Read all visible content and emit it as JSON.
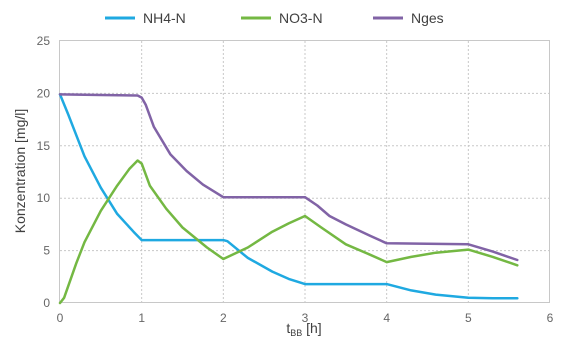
{
  "chart_data": {
    "type": "line",
    "xlabel": "t",
    "xlabel_sub": "BB",
    "xlabel_unit": " [h]",
    "ylabel": "Konzentration [mg/l]",
    "xlim": [
      0,
      6
    ],
    "ylim": [
      0,
      25
    ],
    "x_ticks": [
      0,
      1,
      2,
      3,
      4,
      5,
      6
    ],
    "y_ticks": [
      0,
      5,
      10,
      15,
      20,
      25
    ],
    "grid": true,
    "legend_position": "top",
    "series": [
      {
        "name": "NH4-N",
        "color": "#1fa9e1",
        "x": [
          0,
          0.1,
          0.3,
          0.5,
          0.7,
          0.9,
          1.0,
          1.5,
          2.0,
          2.05,
          2.3,
          2.6,
          2.8,
          3.0,
          3.5,
          4.0,
          4.3,
          4.6,
          5.0,
          5.3,
          5.6
        ],
        "y": [
          19.9,
          18.0,
          14.0,
          11.0,
          8.5,
          6.8,
          6.0,
          6.0,
          6.0,
          5.9,
          4.3,
          3.0,
          2.3,
          1.8,
          1.8,
          1.8,
          1.2,
          0.8,
          0.5,
          0.45,
          0.45
        ]
      },
      {
        "name": "NO3-N",
        "color": "#74b843",
        "x": [
          0,
          0.05,
          0.2,
          0.3,
          0.5,
          0.7,
          0.85,
          0.95,
          1.0,
          1.1,
          1.3,
          1.5,
          1.8,
          2.0,
          2.3,
          2.6,
          2.8,
          3.0,
          3.2,
          3.5,
          3.8,
          4.0,
          4.3,
          4.6,
          5.0,
          5.3,
          5.6
        ],
        "y": [
          0,
          0.5,
          3.8,
          5.8,
          8.8,
          11.2,
          12.8,
          13.6,
          13.3,
          11.2,
          9.0,
          7.2,
          5.3,
          4.2,
          5.3,
          6.8,
          7.6,
          8.3,
          7.2,
          5.6,
          4.6,
          3.9,
          4.4,
          4.8,
          5.1,
          4.4,
          3.6
        ]
      },
      {
        "name": "Nges",
        "color": "#8163a6",
        "x": [
          0,
          0.5,
          0.95,
          1.0,
          1.05,
          1.15,
          1.35,
          1.55,
          1.75,
          2.0,
          2.5,
          3.0,
          3.15,
          3.3,
          3.5,
          3.8,
          4.0,
          4.5,
          5.0,
          5.3,
          5.6
        ],
        "y": [
          19.9,
          19.85,
          19.8,
          19.6,
          18.9,
          16.8,
          14.2,
          12.6,
          11.3,
          10.1,
          10.1,
          10.1,
          9.3,
          8.3,
          7.5,
          6.4,
          5.7,
          5.65,
          5.6,
          4.9,
          4.1
        ]
      }
    ]
  }
}
